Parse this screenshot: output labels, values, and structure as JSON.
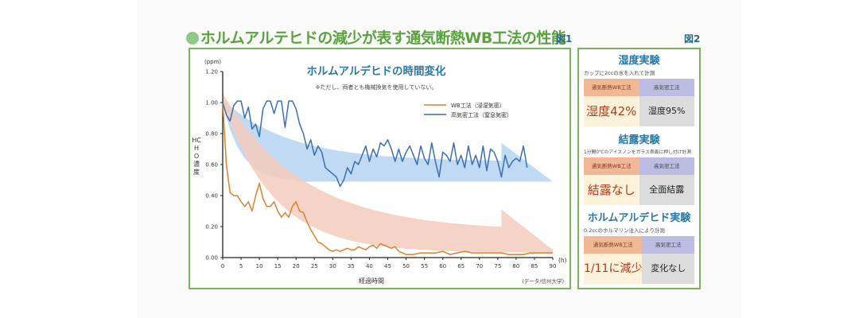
{
  "page": {
    "title": "ホルムアルテヒドの減少が表す通気断熱WB工法の性能",
    "fig1_label": "図1",
    "fig2_label": "図2"
  },
  "chart_data": {
    "type": "line",
    "title": "ホルムアルデヒドの時間変化",
    "subtitle": "※ただし、両者とも機械換気を使用していない。",
    "xlabel": "経過時間",
    "x_unit": "(h)",
    "ylabel": "HCHO濃度",
    "y_unit": "(ppm)",
    "source": "(データ/信州大学)",
    "xlim": [
      0,
      90
    ],
    "ylim": [
      0,
      1.2
    ],
    "x_ticks": [
      "0",
      "5",
      "10",
      "15",
      "20",
      "25",
      "30",
      "35",
      "40",
      "45",
      "50",
      "55",
      "60",
      "65",
      "70",
      "75",
      "80",
      "85",
      "90"
    ],
    "y_ticks": [
      "0.00",
      "0.20",
      "0.40",
      "0.60",
      "0.80",
      "1.00",
      "1.20"
    ],
    "grid": false,
    "legend_position": "top-right",
    "series": [
      {
        "name": "WB工法（浸湿気密）",
        "color": "#d9822b",
        "x": [
          0,
          1,
          2,
          3,
          4,
          5,
          6,
          7,
          8,
          9,
          10,
          11,
          12,
          13,
          14,
          15,
          16,
          17,
          18,
          19,
          20,
          21,
          22,
          23,
          24,
          25,
          26,
          27,
          28,
          29,
          30,
          31,
          32,
          33,
          34,
          35,
          36,
          37,
          38,
          39,
          40,
          41,
          42,
          43,
          44,
          45,
          46,
          47,
          48,
          49,
          50,
          52,
          54,
          56,
          58,
          60,
          62,
          64,
          66,
          68,
          70,
          72,
          74,
          76,
          78,
          80,
          82,
          84,
          86,
          88,
          90
        ],
        "values": [
          1.0,
          0.6,
          0.42,
          0.4,
          0.4,
          0.36,
          0.33,
          0.36,
          0.3,
          0.4,
          0.48,
          0.38,
          0.33,
          0.33,
          0.36,
          0.3,
          0.26,
          0.29,
          0.26,
          0.33,
          0.36,
          0.3,
          0.29,
          0.23,
          0.18,
          0.14,
          0.1,
          0.09,
          0.07,
          0.05,
          0.04,
          0.05,
          0.04,
          0.05,
          0.06,
          0.05,
          0.05,
          0.07,
          0.06,
          0.05,
          0.07,
          0.08,
          0.06,
          0.09,
          0.08,
          0.07,
          0.06,
          0.07,
          0.04,
          0.03,
          0.02,
          0.02,
          0.03,
          0.03,
          0.03,
          0.04,
          0.02,
          0.03,
          0.04,
          0.03,
          0.03,
          0.03,
          0.03,
          0.03,
          0.02,
          0.02,
          0.02,
          0.03,
          0.03,
          0.03,
          0.03
        ]
      },
      {
        "name": "高気密工法（窒息気密）",
        "color": "#3a6fb0",
        "x": [
          0,
          1,
          2,
          3,
          4,
          5,
          6,
          7,
          8,
          9,
          10,
          11,
          12,
          13,
          14,
          15,
          16,
          17,
          18,
          19,
          20,
          21,
          22,
          23,
          24,
          25,
          26,
          27,
          28,
          29,
          30,
          31,
          32,
          33,
          34,
          35,
          36,
          37,
          38,
          39,
          40,
          41,
          42,
          43,
          44,
          45,
          46,
          47,
          48,
          49,
          50,
          51,
          52,
          53,
          54,
          55,
          56,
          57,
          58,
          59,
          60,
          61,
          62,
          63,
          64,
          65,
          66,
          67,
          68,
          69,
          70,
          71,
          72,
          73,
          74,
          75,
          76,
          77,
          78,
          79,
          80,
          81,
          82,
          83
        ],
        "values": [
          1.0,
          0.92,
          0.88,
          0.98,
          1.01,
          1.01,
          0.9,
          0.97,
          0.83,
          0.86,
          0.78,
          0.96,
          1.01,
          1.01,
          0.93,
          1.01,
          1.01,
          0.84,
          1.01,
          1.01,
          0.96,
          0.86,
          0.8,
          0.7,
          0.76,
          0.66,
          0.72,
          0.68,
          0.58,
          0.56,
          0.54,
          0.52,
          0.46,
          0.5,
          0.58,
          0.54,
          0.62,
          0.6,
          0.66,
          0.72,
          0.62,
          0.7,
          0.65,
          0.74,
          0.72,
          0.76,
          0.7,
          0.62,
          0.7,
          0.62,
          0.68,
          0.72,
          0.66,
          0.6,
          0.72,
          0.64,
          0.6,
          0.74,
          0.62,
          0.52,
          0.68,
          0.66,
          0.62,
          0.74,
          0.6,
          0.66,
          0.58,
          0.72,
          0.6,
          0.66,
          0.58,
          0.72,
          0.56,
          0.7,
          0.68,
          0.62,
          0.52,
          0.66,
          0.58,
          0.62,
          0.64,
          0.62,
          0.72,
          0.58
        ]
      }
    ],
    "annotations": [
      {
        "type": "trend-arrow",
        "color": "#f4cbbd",
        "description": "pink decreasing band arrow behind WB工法 line"
      },
      {
        "type": "trend-arrow",
        "color": "#bad6f2",
        "description": "blue band arrow behind 高気密工法 line"
      }
    ]
  },
  "experiments": [
    {
      "title": "湿度実験",
      "note": "カップに2ccの水を入れて計測",
      "wb_header": "通気断熱WB工法",
      "hi_header": "高気密工法",
      "wb_result": "湿度42%",
      "hi_result": "湿度95%"
    },
    {
      "title": "結露実験",
      "note": "1分間0℃のアイスノンをガラス表面に押し付け計測",
      "wb_header": "通気断熱WB工法",
      "hi_header": "高気密工法",
      "wb_result": "結露なし",
      "hi_result": "全面結露"
    },
    {
      "title": "ホルムアルデヒド実験",
      "note": "0.2ccのホルマリン注入により計測",
      "wb_header": "通気断熱WB工法",
      "hi_header": "高気密工法",
      "wb_result": "1/11に減少",
      "hi_result": "変化なし"
    }
  ]
}
